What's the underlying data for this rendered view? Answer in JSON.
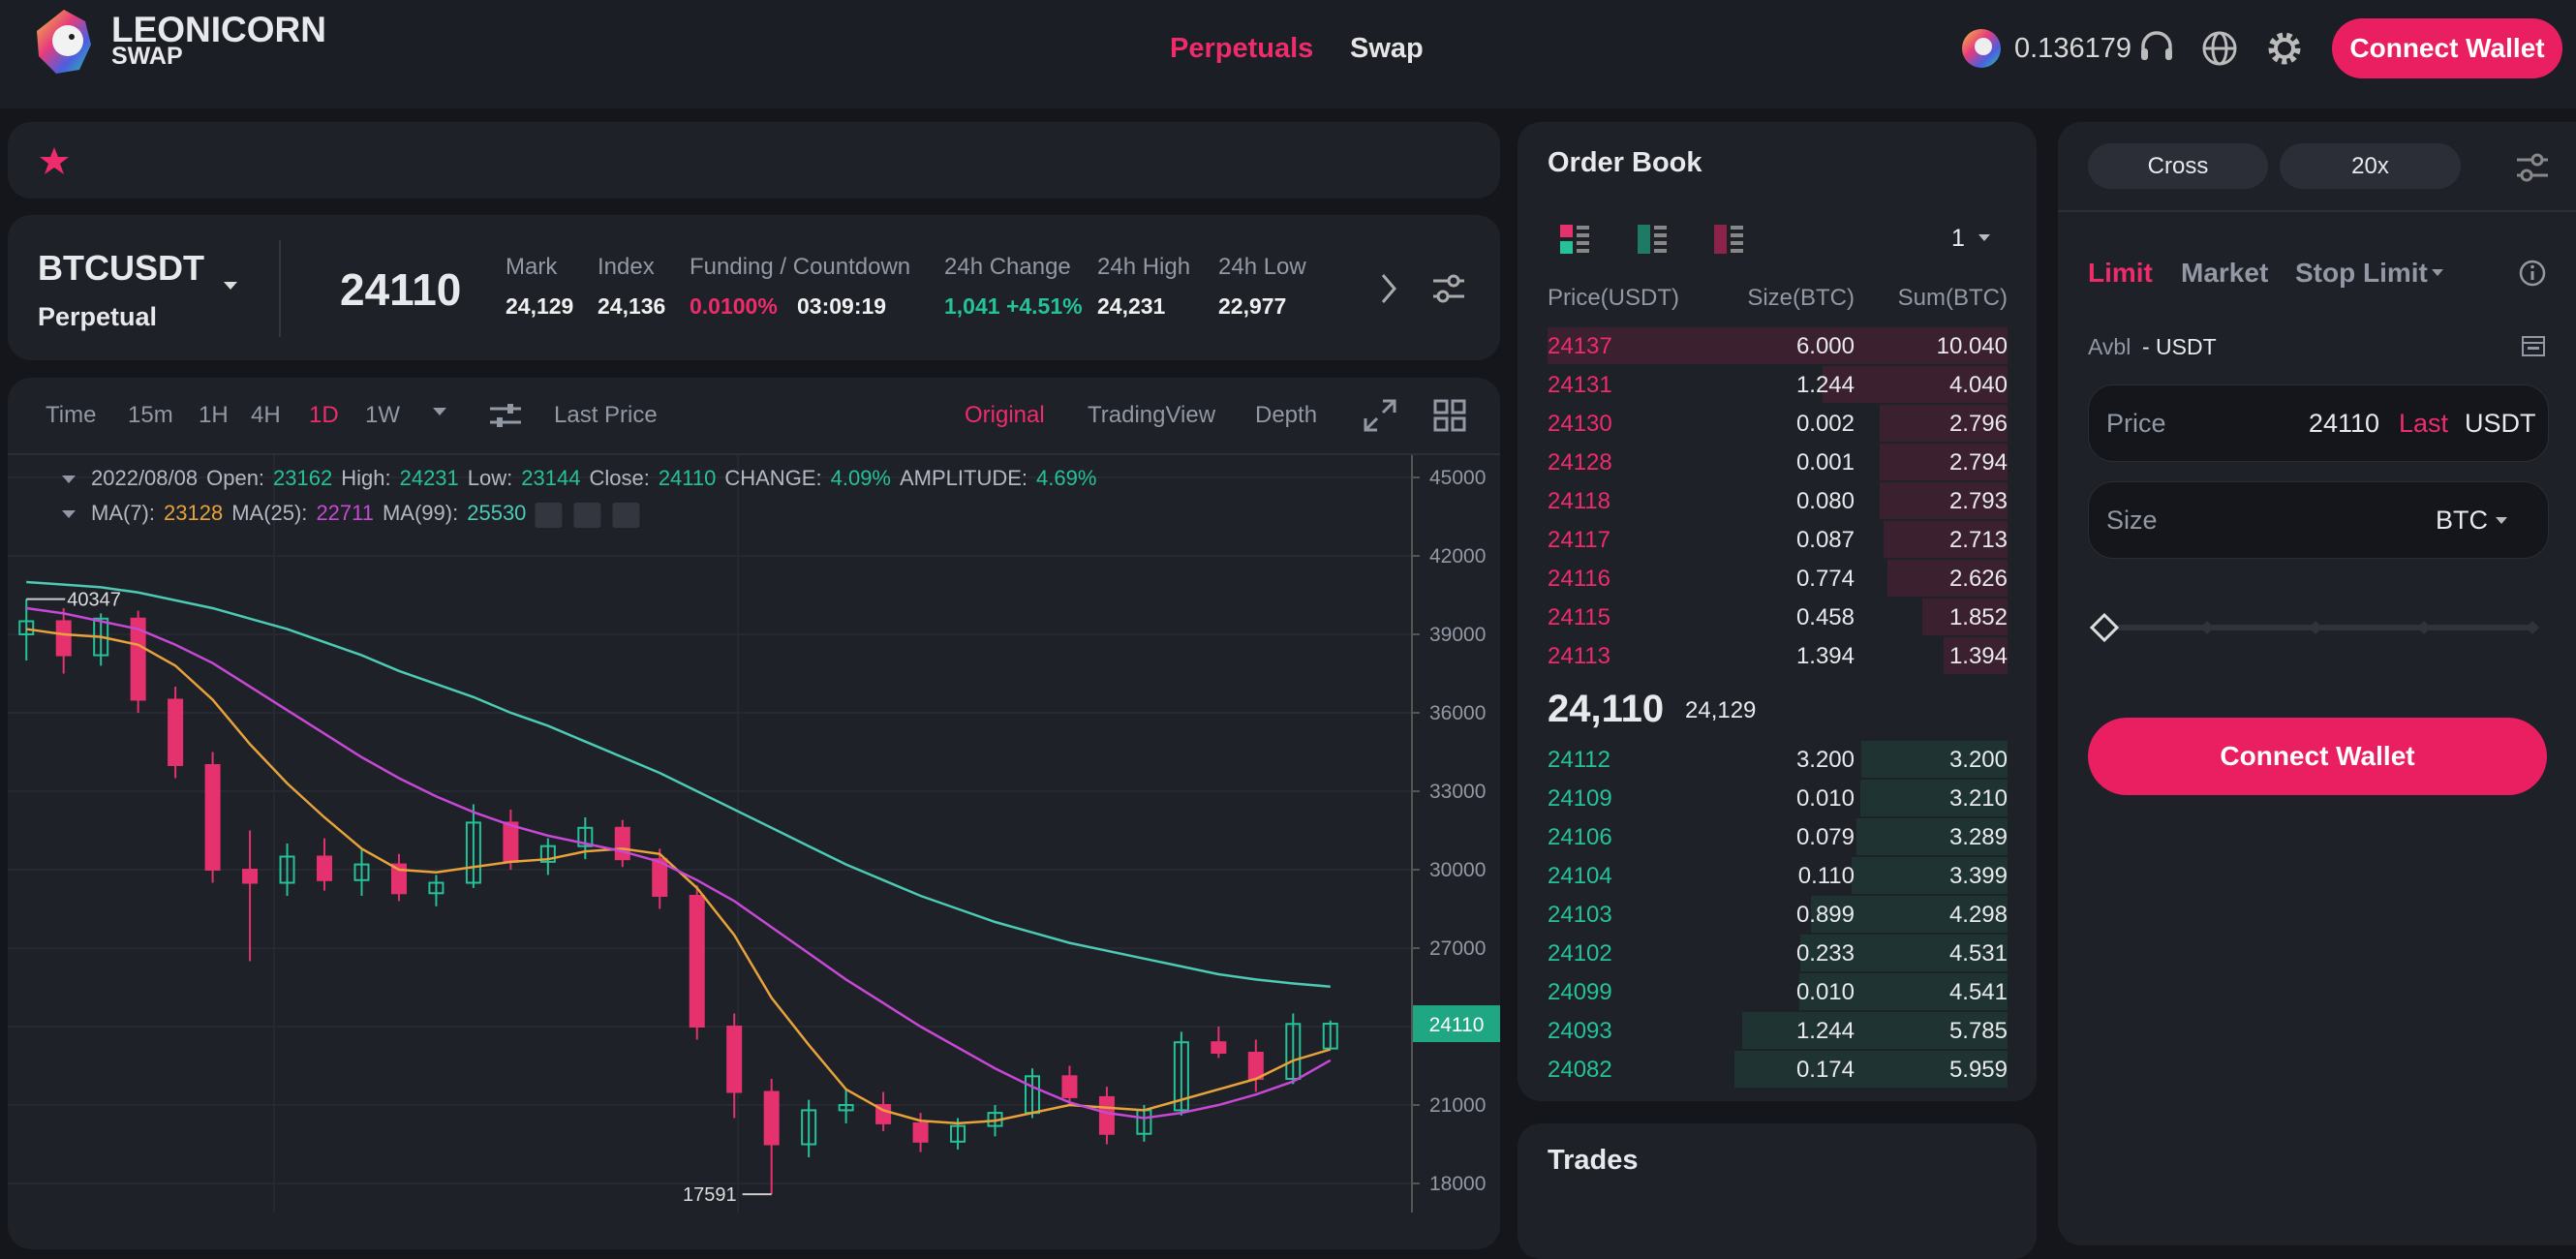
{
  "header": {
    "logo_title": "LEONICORN",
    "logo_sub": "SWAP",
    "nav": [
      "Perpetuals",
      "Swap"
    ],
    "balance": "0.136179",
    "connect": "Connect Wallet"
  },
  "ticker": {
    "symbol": "BTCUSDT",
    "contract": "Perpetual",
    "price": "24110",
    "stats": [
      {
        "label": "Mark",
        "value": "24,129"
      },
      {
        "label": "Index",
        "value": "24,136"
      },
      {
        "label": "Funding / Countdown",
        "value": "0.0100%",
        "value2": "03:09:19"
      },
      {
        "label": "24h Change",
        "value": "1,041 +4.51%"
      },
      {
        "label": "24h High",
        "value": "24,231"
      },
      {
        "label": "24h Low",
        "value": "22,977"
      }
    ]
  },
  "toolbar": {
    "intervals": [
      "Time",
      "15m",
      "1H",
      "4H",
      "1D",
      "1W"
    ],
    "active_interval": 4,
    "price_type": "Last Price",
    "views": [
      "Original",
      "TradingView",
      "Depth"
    ],
    "active_view": 0
  },
  "chart_data": {
    "type": "candlestick",
    "up_color": "#25c29a",
    "down_color": "#e5326f",
    "grid": true,
    "info": {
      "date": "2022/08/08",
      "labels": [
        "Open:",
        "High:",
        "Low:",
        "Close:",
        "CHANGE:",
        "AMPLITUDE:"
      ],
      "change": "4.09%",
      "amplitude": "4.69%"
    },
    "open": [
      39000,
      39500,
      38200,
      39600,
      36500,
      34000,
      30000,
      29500,
      30500,
      29600,
      30200,
      29100,
      29500,
      31800,
      30300,
      30900,
      31600,
      30400,
      29000,
      24000,
      21500,
      19500,
      20800,
      21000,
      20300,
      19600,
      20200,
      20700,
      22100,
      21300,
      19900,
      20800,
      23400,
      23000,
      22000,
      23162
    ],
    "high": [
      40347,
      40000,
      39800,
      39900,
      37000,
      34500,
      31500,
      31000,
      31200,
      30800,
      30600,
      29800,
      32500,
      32300,
      31200,
      32000,
      31900,
      30800,
      29400,
      24500,
      22000,
      21200,
      21600,
      21500,
      20700,
      20500,
      21000,
      22400,
      22500,
      21700,
      21000,
      23800,
      24000,
      23500,
      24500,
      24231
    ],
    "low": [
      38000,
      37500,
      37800,
      36000,
      33500,
      29500,
      26500,
      29000,
      29200,
      29000,
      28800,
      28600,
      29300,
      30000,
      29800,
      30400,
      30100,
      28500,
      23500,
      20500,
      17591,
      19000,
      20300,
      20000,
      19200,
      19300,
      19800,
      20500,
      21000,
      19500,
      19600,
      20600,
      22800,
      21500,
      21800,
      23144
    ],
    "close": [
      39500,
      38200,
      39600,
      36500,
      34000,
      30000,
      29500,
      30500,
      29600,
      30200,
      29100,
      29500,
      31800,
      30300,
      30900,
      31600,
      30400,
      29000,
      24000,
      21500,
      19500,
      20800,
      21000,
      20300,
      19600,
      20200,
      20700,
      22100,
      21300,
      19900,
      20800,
      23400,
      23000,
      22000,
      24100,
      24110
    ],
    "series": [
      {
        "name": "MA(7):",
        "color": "#e8a23a",
        "values": [
          39200,
          39000,
          38900,
          38600,
          37800,
          36500,
          34800,
          33300,
          32000,
          30800,
          30000,
          29900,
          30100,
          30300,
          30400,
          30700,
          30800,
          30600,
          29300,
          27500,
          25100,
          23300,
          21600,
          20800,
          20400,
          20300,
          20400,
          20700,
          21000,
          20900,
          20800,
          21200,
          21600,
          22000,
          22700,
          23128
        ]
      },
      {
        "name": "MA(25):",
        "color": "#c848d6",
        "values": [
          40000,
          39800,
          39500,
          39200,
          38600,
          37900,
          37000,
          36100,
          35200,
          34300,
          33500,
          32800,
          32200,
          31700,
          31300,
          31000,
          30700,
          30300,
          29600,
          28800,
          27800,
          26800,
          25800,
          24900,
          24000,
          23200,
          22400,
          21700,
          21100,
          20700,
          20500,
          20700,
          21000,
          21400,
          21900,
          22711
        ]
      },
      {
        "name": "MA(99):",
        "color": "#4ccab4",
        "values": [
          41000,
          40900,
          40800,
          40600,
          40300,
          40000,
          39600,
          39200,
          38700,
          38200,
          37600,
          37100,
          36600,
          36000,
          35500,
          34900,
          34300,
          33700,
          33000,
          32300,
          31600,
          30900,
          30200,
          29600,
          29000,
          28500,
          28000,
          27600,
          27200,
          26900,
          26600,
          26300,
          26000,
          25800,
          25650,
          25530
        ]
      }
    ],
    "ylim": [
      16890,
      45850
    ],
    "yticks": [
      45000,
      42000,
      39000,
      36000,
      33000,
      30000,
      27000,
      24000,
      21000,
      18000
    ]
  },
  "order_book": {
    "title": "Order Book",
    "precision": "1",
    "columns": [
      "Price(USDT)",
      "Size(BTC)",
      "Sum(BTC)"
    ],
    "asks": [
      [
        "24137",
        "6.000",
        "10.040"
      ],
      [
        "24131",
        "1.244",
        "4.040"
      ],
      [
        "24130",
        "0.002",
        "2.796"
      ],
      [
        "24128",
        "0.001",
        "2.794"
      ],
      [
        "24118",
        "0.080",
        "2.793"
      ],
      [
        "24117",
        "0.087",
        "2.713"
      ],
      [
        "24116",
        "0.774",
        "2.626"
      ],
      [
        "24115",
        "0.458",
        "1.852"
      ],
      [
        "24113",
        "1.394",
        "1.394"
      ]
    ],
    "last_price": "24,110",
    "mark_price": "24,129",
    "bids": [
      [
        "24112",
        "3.200",
        "3.200"
      ],
      [
        "24109",
        "0.010",
        "3.210"
      ],
      [
        "24106",
        "0.079",
        "3.289"
      ],
      [
        "24104",
        "0.110",
        "3.399"
      ],
      [
        "24103",
        "0.899",
        "4.298"
      ],
      [
        "24102",
        "0.233",
        "4.531"
      ],
      [
        "24099",
        "0.010",
        "4.541"
      ],
      [
        "24093",
        "1.244",
        "5.785"
      ],
      [
        "24082",
        "0.174",
        "5.959"
      ]
    ]
  },
  "trades": {
    "title": "Trades"
  },
  "trade_panel": {
    "margin_mode": "Cross",
    "leverage": "20x",
    "order_types": [
      "Limit",
      "Market",
      "Stop Limit"
    ],
    "active_type": 0,
    "avbl_label": "Avbl",
    "avbl_value": "- USDT",
    "price_label": "Price",
    "price_value": "24110",
    "price_tag": "Last",
    "price_unit": "USDT",
    "size_label": "Size",
    "size_unit": "BTC",
    "connect": "Connect Wallet"
  }
}
